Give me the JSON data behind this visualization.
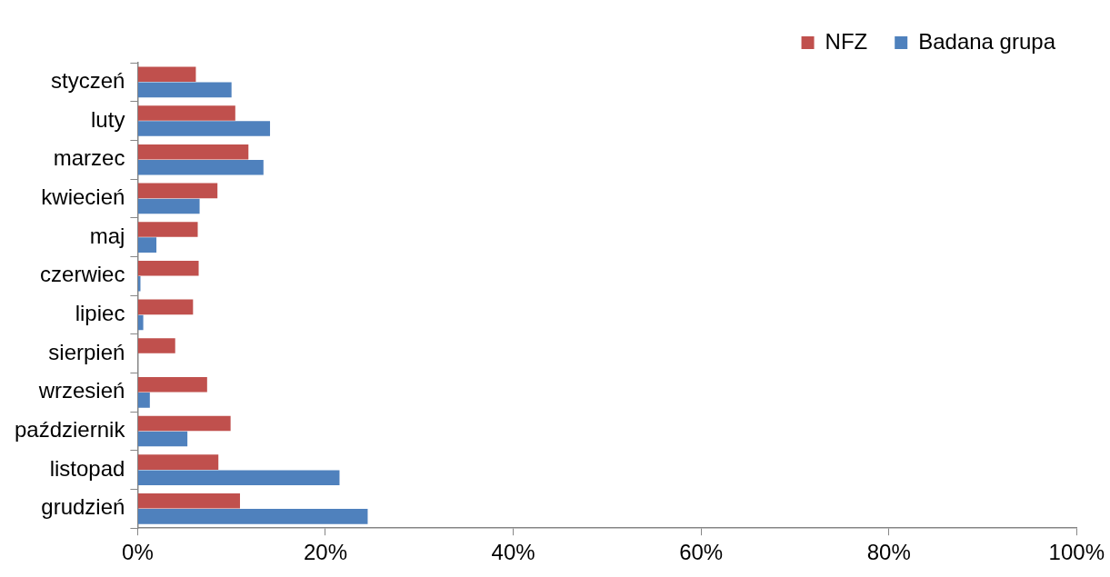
{
  "chart_data": {
    "type": "bar",
    "orientation": "horizontal",
    "categories": [
      "styczeń",
      "luty",
      "marzec",
      "kwiecień",
      "maj",
      "czerwiec",
      "lipiec",
      "sierpień",
      "wrzesień",
      "październik",
      "listopad",
      "grudzień"
    ],
    "series": [
      {
        "name": "NFZ",
        "color": "#c0504d",
        "values": [
          6.2,
          10.4,
          11.8,
          8.5,
          6.4,
          6.5,
          5.9,
          4.0,
          7.4,
          9.9,
          8.6,
          10.9
        ]
      },
      {
        "name": "Badana grupa",
        "color": "#4f81bd",
        "values": [
          10.0,
          14.1,
          13.4,
          6.6,
          2.0,
          0.3,
          0.6,
          0,
          1.3,
          5.3,
          21.5,
          24.5
        ]
      }
    ],
    "xlim": [
      0,
      100
    ],
    "xticks": [
      {
        "value": 0,
        "label": "0%"
      },
      {
        "value": 20,
        "label": "20%"
      },
      {
        "value": 40,
        "label": "40%"
      },
      {
        "value": 60,
        "label": "60%"
      },
      {
        "value": 80,
        "label": "80%"
      },
      {
        "value": 100,
        "label": "100%"
      }
    ],
    "grid": false,
    "legend": "top right"
  }
}
